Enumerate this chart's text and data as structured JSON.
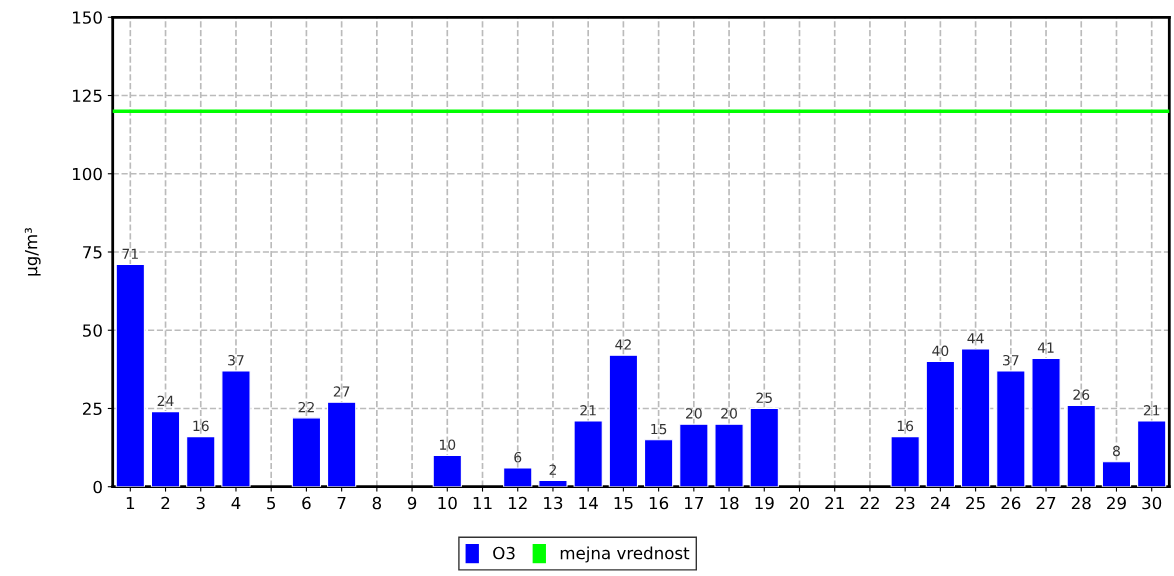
{
  "chart_data": {
    "type": "bar",
    "ylabel": "µg/m³",
    "categories": [
      "1",
      "2",
      "3",
      "4",
      "5",
      "6",
      "7",
      "8",
      "9",
      "10",
      "11",
      "12",
      "13",
      "14",
      "15",
      "16",
      "17",
      "18",
      "19",
      "20",
      "21",
      "22",
      "23",
      "24",
      "25",
      "26",
      "27",
      "28",
      "29",
      "30"
    ],
    "series": [
      {
        "name": "O3",
        "color": "#0000ff",
        "values": [
          71,
          24,
          16,
          37,
          null,
          22,
          27,
          null,
          null,
          10,
          null,
          6,
          2,
          21,
          42,
          15,
          20,
          20,
          25,
          null,
          null,
          null,
          16,
          40,
          44,
          37,
          41,
          26,
          8,
          21
        ]
      }
    ],
    "ylim": [
      0,
      150
    ],
    "yticks": [
      0,
      25,
      50,
      75,
      100,
      125,
      150
    ],
    "ref_lines": [
      {
        "axis": "y",
        "value": 120,
        "label": "mejna vrednost",
        "color": "#00ff00",
        "line_style": "solid"
      }
    ],
    "data_labels": true,
    "grid": true,
    "legend": "bottom"
  }
}
